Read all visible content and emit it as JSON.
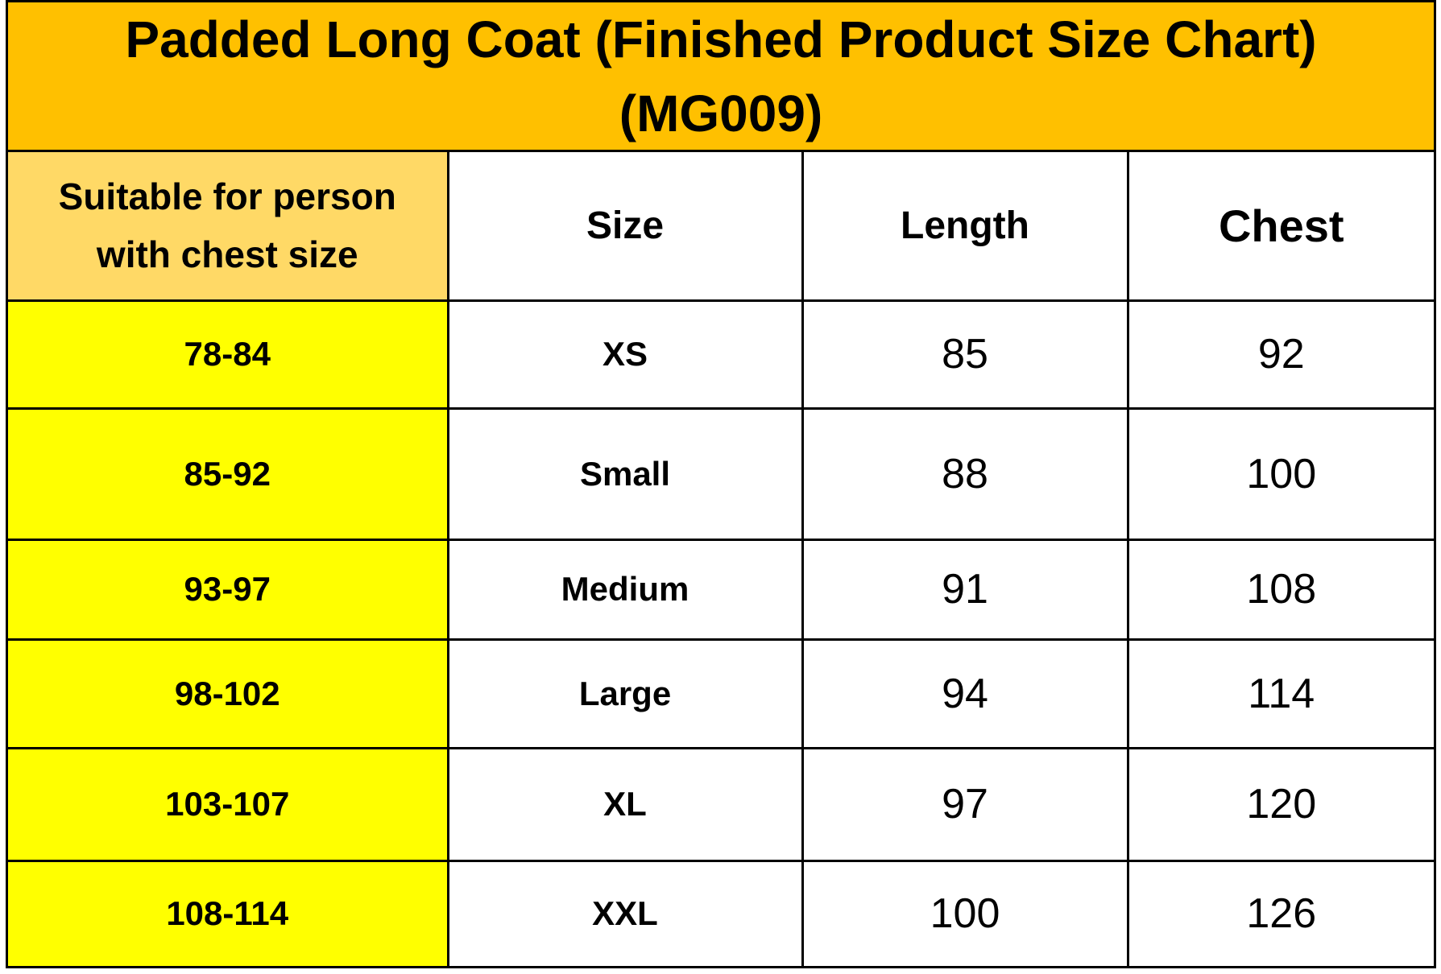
{
  "title": {
    "line1": "Padded Long Coat (Finished Product Size Chart)",
    "line2": "(MG009)"
  },
  "colors": {
    "title_band": "#ffc000",
    "header_suitable": "#ffd966",
    "range_column": "#ffff00"
  },
  "table": {
    "headers": {
      "suitable_line1": "Suitable for person",
      "suitable_line2": "with chest size",
      "size": "Size",
      "length": "Length",
      "chest": "Chest"
    },
    "rows": [
      {
        "range": "78-84",
        "size": "XS",
        "length": "85",
        "chest": "92"
      },
      {
        "range": "85-92",
        "size": "Small",
        "length": "88",
        "chest": "100"
      },
      {
        "range": "93-97",
        "size": "Medium",
        "length": "91",
        "chest": "108"
      },
      {
        "range": "98-102",
        "size": "Large",
        "length": "94",
        "chest": "114"
      },
      {
        "range": "103-107",
        "size": "XL",
        "length": "97",
        "chest": "120"
      },
      {
        "range": "108-114",
        "size": "XXL",
        "length": "100",
        "chest": "126"
      }
    ]
  }
}
